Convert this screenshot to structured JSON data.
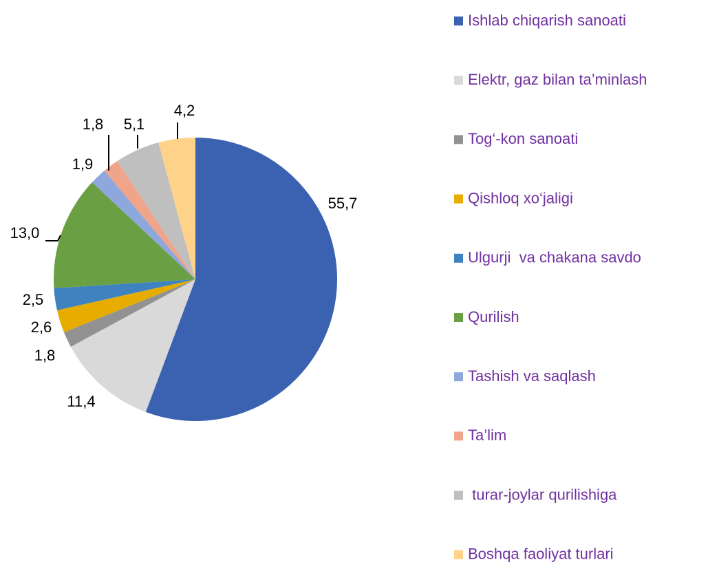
{
  "chart_data": {
    "type": "pie",
    "categories": [
      "Ishlab chiqarish sanoati",
      "Elektr, gaz bilan ta’minlash",
      "Tog‘-kon sanoati",
      "Qishloq xo‘jaligi",
      "Ulgurji  va chakana savdo",
      "Qurilish",
      "Tashish va saqlash",
      "Ta’lim",
      " turar-joylar qurilishiga",
      "Boshqa faoliyat turlari"
    ],
    "values": [
      55.7,
      11.4,
      1.8,
      2.6,
      2.5,
      13.0,
      1.9,
      1.8,
      5.1,
      4.2
    ],
    "value_labels": [
      "55,7",
      "11,4",
      "1,8",
      "2,6",
      "2,5",
      "13,0",
      "1,9",
      "1,8",
      "5,1",
      "4,2"
    ],
    "colors": [
      "#3a62b0",
      "#d9d9d9",
      "#929292",
      "#e6ac00",
      "#3f82c0",
      "#6aa043",
      "#8ea7dc",
      "#f0a58b",
      "#bfbfbf",
      "#ffd28a"
    ],
    "legend": "right"
  }
}
